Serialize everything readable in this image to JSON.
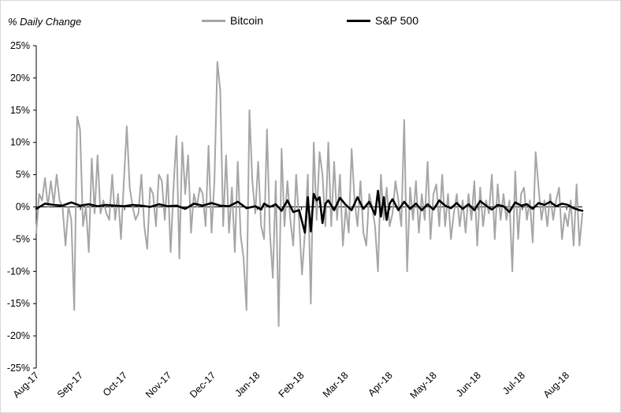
{
  "chart_data": {
    "type": "line",
    "title": "",
    "ylabel": "% Daily Change",
    "xlabel": "",
    "ylim": [
      -25,
      25
    ],
    "y_ticks": [
      25,
      20,
      15,
      10,
      5,
      0,
      -5,
      -10,
      -15,
      -20,
      -25
    ],
    "y_tick_labels": [
      "25%",
      "20%",
      "15%",
      "10%",
      "5%",
      "0%",
      "-5%",
      "-10%",
      "-15%",
      "-20%",
      "-25%"
    ],
    "x_tick_labels": [
      "Aug-17",
      "Sep-17",
      "Oct-17",
      "Nov-17",
      "Dec-17",
      "Jan-18",
      "Feb-18",
      "Mar-18",
      "Apr-18",
      "May-18",
      "Jun-18",
      "Jul-18",
      "Aug-18"
    ],
    "grid": false,
    "legend_position": "top",
    "series": [
      {
        "name": "Bitcoin",
        "color": "#a6a6a6",
        "points": [
          [
            0,
            -4
          ],
          [
            1,
            2
          ],
          [
            2,
            1
          ],
          [
            3,
            4.5
          ],
          [
            4,
            0
          ],
          [
            5,
            4
          ],
          [
            6,
            0.5
          ],
          [
            7,
            5
          ],
          [
            8,
            1
          ],
          [
            9,
            0
          ],
          [
            10,
            -6
          ],
          [
            11,
            0
          ],
          [
            12,
            -2
          ],
          [
            13,
            -16
          ],
          [
            14,
            14
          ],
          [
            15,
            12
          ],
          [
            16,
            -3
          ],
          [
            17,
            0
          ],
          [
            18,
            -7
          ],
          [
            19,
            7.5
          ],
          [
            20,
            -1
          ],
          [
            21,
            8
          ],
          [
            22,
            -1
          ],
          [
            23,
            1
          ],
          [
            24,
            -1
          ],
          [
            25,
            -2
          ],
          [
            26,
            5
          ],
          [
            27,
            -2
          ],
          [
            28,
            2
          ],
          [
            29,
            -5
          ],
          [
            30,
            4
          ],
          [
            31,
            12.5
          ],
          [
            32,
            3
          ],
          [
            33,
            0
          ],
          [
            34,
            -2
          ],
          [
            35,
            -1
          ],
          [
            36,
            5
          ],
          [
            37,
            -3
          ],
          [
            38,
            -6.5
          ],
          [
            39,
            3
          ],
          [
            40,
            2
          ],
          [
            41,
            -3
          ],
          [
            42,
            5
          ],
          [
            43,
            4
          ],
          [
            44,
            -2
          ],
          [
            45,
            5
          ],
          [
            46,
            -7
          ],
          [
            47,
            3
          ],
          [
            48,
            11
          ],
          [
            49,
            -8
          ],
          [
            50,
            10
          ],
          [
            51,
            2
          ],
          [
            52,
            8
          ],
          [
            53,
            -4
          ],
          [
            54,
            2
          ],
          [
            55,
            0
          ],
          [
            56,
            3
          ],
          [
            57,
            2
          ],
          [
            58,
            -3
          ],
          [
            59,
            9.5
          ],
          [
            60,
            -4
          ],
          [
            61,
            4
          ],
          [
            62,
            22.5
          ],
          [
            63,
            18
          ],
          [
            64,
            -3
          ],
          [
            65,
            8
          ],
          [
            66,
            -4
          ],
          [
            67,
            3
          ],
          [
            68,
            -7
          ],
          [
            69,
            7
          ],
          [
            70,
            -4.5
          ],
          [
            71,
            -8
          ],
          [
            72,
            -16
          ],
          [
            73,
            15
          ],
          [
            74,
            4
          ],
          [
            75,
            -1
          ],
          [
            76,
            7
          ],
          [
            77,
            -3
          ],
          [
            78,
            -5
          ],
          [
            79,
            12
          ],
          [
            80,
            -4
          ],
          [
            81,
            -11
          ],
          [
            82,
            4
          ],
          [
            83,
            -18.5
          ],
          [
            84,
            9
          ],
          [
            85,
            -3
          ],
          [
            86,
            4
          ],
          [
            87,
            -2
          ],
          [
            88,
            -6
          ],
          [
            89,
            5
          ],
          [
            90,
            -2
          ],
          [
            91,
            -10.5
          ],
          [
            92,
            -4
          ],
          [
            93,
            5
          ],
          [
            94,
            -15
          ],
          [
            95,
            10
          ],
          [
            96,
            -2
          ],
          [
            97,
            8.5
          ],
          [
            98,
            5
          ],
          [
            99,
            -3
          ],
          [
            100,
            10
          ],
          [
            101,
            -3
          ],
          [
            102,
            7
          ],
          [
            103,
            -2
          ],
          [
            104,
            5
          ],
          [
            105,
            -6
          ],
          [
            106,
            0
          ],
          [
            107,
            -4
          ],
          [
            108,
            9
          ],
          [
            109,
            1
          ],
          [
            110,
            -3
          ],
          [
            111,
            4
          ],
          [
            112,
            -4
          ],
          [
            113,
            -6
          ],
          [
            114,
            2
          ],
          [
            115,
            0
          ],
          [
            116,
            -3
          ],
          [
            117,
            -10
          ],
          [
            118,
            5
          ],
          [
            119,
            -2
          ],
          [
            120,
            3
          ],
          [
            121,
            -3
          ],
          [
            122,
            -1
          ],
          [
            123,
            4
          ],
          [
            124,
            1
          ],
          [
            125,
            -3
          ],
          [
            126,
            13.5
          ],
          [
            127,
            -10
          ],
          [
            128,
            3
          ],
          [
            129,
            -2
          ],
          [
            130,
            4
          ],
          [
            131,
            -4
          ],
          [
            132,
            2
          ],
          [
            133,
            -2
          ],
          [
            134,
            7
          ],
          [
            135,
            -5
          ],
          [
            136,
            2
          ],
          [
            137,
            3.5
          ],
          [
            138,
            -3
          ],
          [
            139,
            5
          ],
          [
            140,
            -3
          ],
          [
            141,
            2
          ],
          [
            142,
            -5
          ],
          [
            143,
            -1
          ],
          [
            144,
            2
          ],
          [
            145,
            -3
          ],
          [
            146,
            1
          ],
          [
            147,
            -4
          ],
          [
            148,
            2
          ],
          [
            149,
            -2
          ],
          [
            150,
            4
          ],
          [
            151,
            -6
          ],
          [
            152,
            3
          ],
          [
            153,
            -3
          ],
          [
            154,
            1
          ],
          [
            155,
            -1
          ],
          [
            156,
            5
          ],
          [
            157,
            -5
          ],
          [
            158,
            3.5
          ],
          [
            159,
            -2
          ],
          [
            160,
            2
          ],
          [
            161,
            -2
          ],
          [
            162,
            1
          ],
          [
            163,
            -10
          ],
          [
            164,
            5.5
          ],
          [
            165,
            -5
          ],
          [
            166,
            2
          ],
          [
            167,
            3
          ],
          [
            168,
            -2
          ],
          [
            169,
            1
          ],
          [
            170,
            -5.5
          ],
          [
            171,
            8.5
          ],
          [
            172,
            3
          ],
          [
            173,
            -2
          ],
          [
            174,
            1
          ],
          [
            175,
            -3
          ],
          [
            176,
            2
          ],
          [
            177,
            -2
          ],
          [
            178,
            1
          ],
          [
            179,
            3
          ],
          [
            180,
            -5
          ],
          [
            181,
            -1
          ],
          [
            182,
            -3
          ],
          [
            183,
            1
          ],
          [
            184,
            -6
          ],
          [
            185,
            3.5
          ],
          [
            186,
            -6
          ],
          [
            187,
            -1
          ]
        ]
      },
      {
        "name": "S&P 500",
        "color": "#000000",
        "points": [
          [
            0,
            -0.3
          ],
          [
            3,
            0.5
          ],
          [
            6,
            0.3
          ],
          [
            9,
            0.2
          ],
          [
            12,
            0.7
          ],
          [
            15,
            0.2
          ],
          [
            18,
            0.4
          ],
          [
            21,
            0.1
          ],
          [
            24,
            0.3
          ],
          [
            27,
            0.2
          ],
          [
            30,
            0.1
          ],
          [
            33,
            0.3
          ],
          [
            36,
            0.2
          ],
          [
            39,
            0
          ],
          [
            42,
            0.4
          ],
          [
            45,
            0.1
          ],
          [
            48,
            0.2
          ],
          [
            51,
            -0.3
          ],
          [
            54,
            0.5
          ],
          [
            57,
            0.2
          ],
          [
            60,
            0.6
          ],
          [
            63,
            0.2
          ],
          [
            66,
            0.1
          ],
          [
            69,
            0.8
          ],
          [
            72,
            -0.2
          ],
          [
            75,
            0.1
          ],
          [
            77,
            -0.4
          ],
          [
            78,
            0.5
          ],
          [
            80,
            0
          ],
          [
            82,
            0.4
          ],
          [
            84,
            -0.6
          ],
          [
            86,
            1
          ],
          [
            88,
            -0.8
          ],
          [
            90,
            -0.5
          ],
          [
            92,
            -4
          ],
          [
            93,
            1.5
          ],
          [
            94,
            -3.8
          ],
          [
            95,
            2
          ],
          [
            96,
            1
          ],
          [
            97,
            1.5
          ],
          [
            98,
            -2.5
          ],
          [
            99,
            0.5
          ],
          [
            100,
            1
          ],
          [
            102,
            -0.5
          ],
          [
            104,
            1.4
          ],
          [
            106,
            0.3
          ],
          [
            108,
            -0.5
          ],
          [
            110,
            1.5
          ],
          [
            112,
            -0.3
          ],
          [
            114,
            0.8
          ],
          [
            116,
            -1.2
          ],
          [
            117,
            2.5
          ],
          [
            118,
            -1.5
          ],
          [
            119,
            1.5
          ],
          [
            120,
            -2
          ],
          [
            121,
            0.5
          ],
          [
            122,
            1.2
          ],
          [
            124,
            -0.5
          ],
          [
            126,
            0.8
          ],
          [
            128,
            -0.3
          ],
          [
            130,
            0.5
          ],
          [
            132,
            -0.5
          ],
          [
            134,
            0.4
          ],
          [
            136,
            -0.4
          ],
          [
            138,
            1
          ],
          [
            140,
            0.2
          ],
          [
            142,
            -0.2
          ],
          [
            144,
            0.6
          ],
          [
            146,
            -0.3
          ],
          [
            148,
            0.4
          ],
          [
            150,
            -0.5
          ],
          [
            152,
            0.9
          ],
          [
            154,
            0.2
          ],
          [
            156,
            -0.4
          ],
          [
            158,
            0.3
          ],
          [
            160,
            0.1
          ],
          [
            162,
            -0.8
          ],
          [
            164,
            0.7
          ],
          [
            166,
            0.2
          ],
          [
            168,
            0.4
          ],
          [
            170,
            -0.3
          ],
          [
            172,
            0.6
          ],
          [
            174,
            0.3
          ],
          [
            176,
            0.8
          ],
          [
            178,
            0.1
          ],
          [
            180,
            0.5
          ],
          [
            182,
            0.3
          ],
          [
            184,
            -0.2
          ],
          [
            186,
            -0.5
          ],
          [
            187,
            -0.6
          ]
        ]
      }
    ]
  }
}
